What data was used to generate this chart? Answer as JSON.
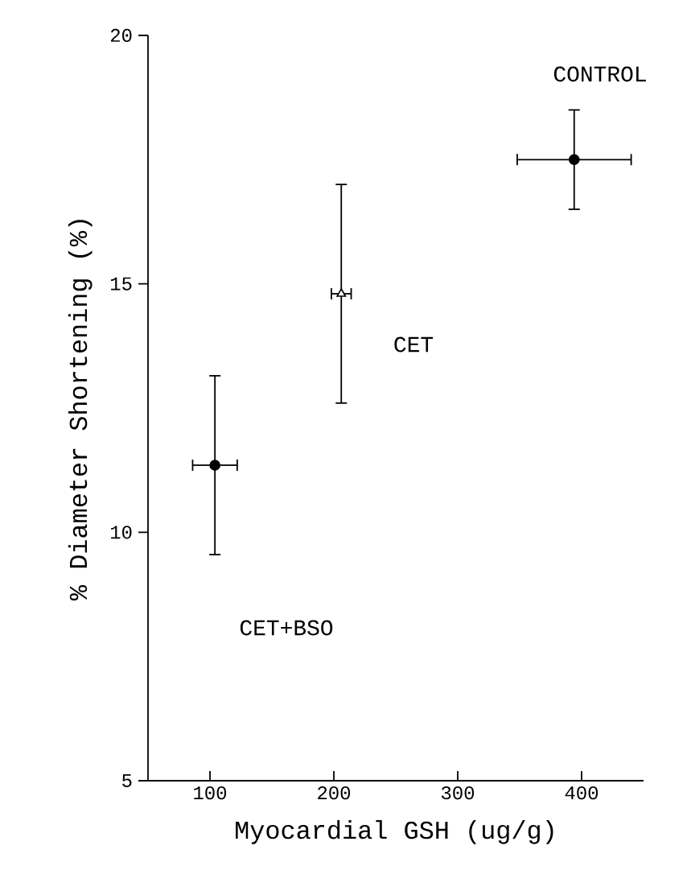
{
  "chart_data": {
    "type": "scatter",
    "xlabel": "Myocardial GSH (ug/g)",
    "ylabel": "% Diameter Shortening (%)",
    "xlim": [
      50,
      450
    ],
    "xticks": [
      100,
      200,
      300,
      400
    ],
    "ylim": [
      5,
      20
    ],
    "yticks": [
      5,
      10,
      15,
      20
    ],
    "series": [
      {
        "color": "#000000",
        "marker": "circle",
        "x": [
          104,
          394
        ],
        "values": [
          11.35,
          17.5
        ],
        "errors": [
          1.8,
          1.0
        ],
        "xerrors": [
          18,
          46
        ]
      },
      {
        "color": "#000000",
        "marker": "triangle",
        "x": [
          206
        ],
        "values": [
          14.8
        ],
        "errors": [
          2.2
        ],
        "xerrors": [
          8
        ]
      }
    ],
    "annotations": [
      "CONTROL",
      "CET",
      "CET+BSO"
    ]
  }
}
